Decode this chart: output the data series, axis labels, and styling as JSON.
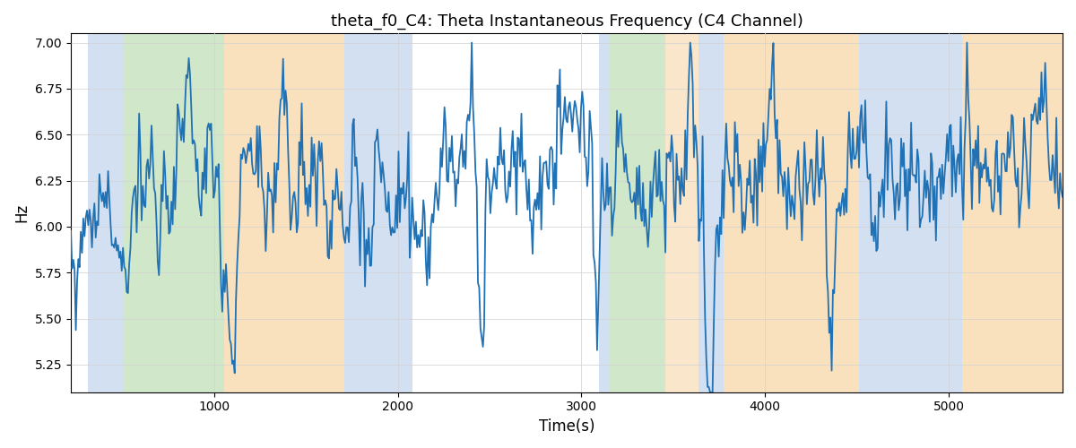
{
  "title": "theta_f0_C4: Theta Instantaneous Frequency (C4 Channel)",
  "xlabel": "Time(s)",
  "ylabel": "Hz",
  "xlim": [
    220,
    5620
  ],
  "ylim": [
    5.1,
    7.05
  ],
  "yticks": [
    5.25,
    5.5,
    5.75,
    6.0,
    6.25,
    6.5,
    6.75,
    7.0
  ],
  "line_color": "#2171b5",
  "line_width": 1.3,
  "bg_regions": [
    {
      "xmin": 315,
      "xmax": 510,
      "color": "#adc8e8",
      "alpha": 0.55
    },
    {
      "xmin": 510,
      "xmax": 1055,
      "color": "#aad4a0",
      "alpha": 0.55
    },
    {
      "xmin": 1055,
      "xmax": 1710,
      "color": "#f5c98a",
      "alpha": 0.55
    },
    {
      "xmin": 1710,
      "xmax": 2080,
      "color": "#adc8e8",
      "alpha": 0.55
    },
    {
      "xmin": 3095,
      "xmax": 3155,
      "color": "#adc8e8",
      "alpha": 0.55
    },
    {
      "xmin": 3155,
      "xmax": 3455,
      "color": "#aad4a0",
      "alpha": 0.55
    },
    {
      "xmin": 3455,
      "xmax": 3640,
      "color": "#f5c98a",
      "alpha": 0.45
    },
    {
      "xmin": 3640,
      "xmax": 3775,
      "color": "#adc8e8",
      "alpha": 0.55
    },
    {
      "xmin": 3775,
      "xmax": 4510,
      "color": "#f5c98a",
      "alpha": 0.55
    },
    {
      "xmin": 4510,
      "xmax": 5075,
      "color": "#adc8e8",
      "alpha": 0.55
    },
    {
      "xmin": 5075,
      "xmax": 5620,
      "color": "#f5c98a",
      "alpha": 0.55
    }
  ],
  "seed": 12345,
  "n_points": 800,
  "time_start": 220,
  "time_end": 5620
}
